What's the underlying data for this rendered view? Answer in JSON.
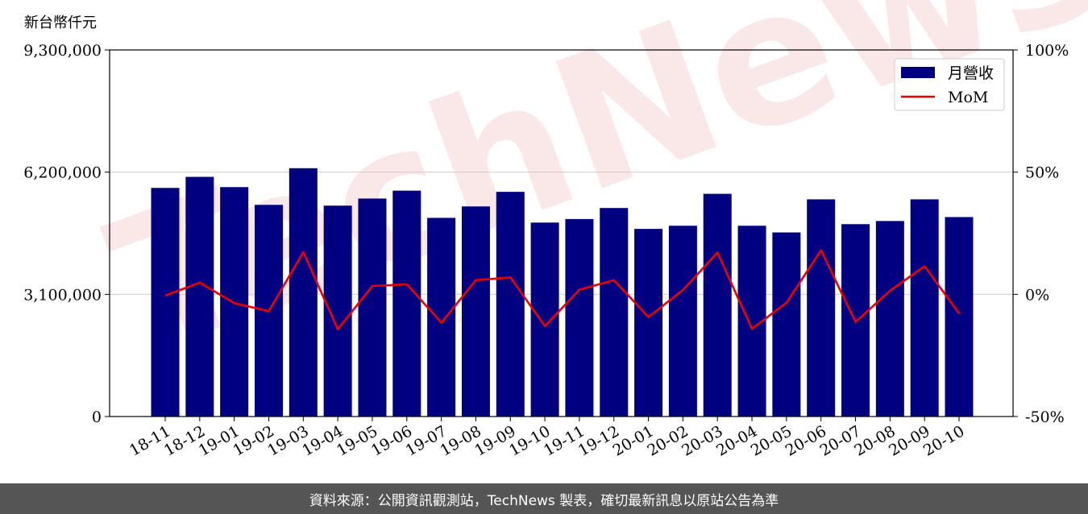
{
  "chart_data": {
    "type": "bar",
    "unit_label": "新台幣仟元",
    "categories": [
      "18-11",
      "18-12",
      "19-01",
      "19-02",
      "19-03",
      "19-04",
      "19-05",
      "19-06",
      "19-07",
      "19-08",
      "19-09",
      "19-10",
      "19-11",
      "19-12",
      "20-01",
      "20-02",
      "20-03",
      "20-04",
      "20-05",
      "20-06",
      "20-07",
      "20-08",
      "20-09",
      "20-10"
    ],
    "series": [
      {
        "name": "月營收",
        "axis": "left",
        "color": "#000080",
        "values": [
          5800000,
          6080000,
          5820000,
          5370000,
          6300000,
          5350000,
          5530000,
          5730000,
          5040000,
          5330000,
          5700000,
          4920000,
          5010000,
          5290000,
          4760000,
          4840000,
          5650000,
          4840000,
          4670000,
          5510000,
          4880000,
          4960000,
          5510000,
          5060000
        ]
      },
      {
        "name": "MoM",
        "axis": "right",
        "color": "#ee0000",
        "values": [
          -0.5,
          4.8,
          -3.6,
          -6.9,
          17.3,
          -14.3,
          3.4,
          4.1,
          -11.6,
          5.8,
          6.9,
          -13.0,
          1.9,
          5.8,
          -9.3,
          1.8,
          17.1,
          -14.1,
          -3.4,
          18.0,
          -11.3,
          1.5,
          11.5,
          -7.8
        ]
      }
    ],
    "y_left": {
      "ylim": [
        0,
        9300000
      ],
      "ticks": [
        "0",
        "3,100,000",
        "6,200,000",
        "9,300,000"
      ],
      "tick_values": [
        0,
        3100000,
        6200000,
        9300000
      ]
    },
    "y_right": {
      "ylim": [
        -50,
        100
      ],
      "ticks": [
        "-50%",
        "0%",
        "50%",
        "100%"
      ],
      "tick_values": [
        -50,
        0,
        50,
        100
      ]
    },
    "grid": "horizontal",
    "legend": {
      "placement": "top-right",
      "entries": [
        "月營收",
        "MoM"
      ]
    },
    "watermark": "TechNews"
  },
  "footer": {
    "text": "資料來源：公開資訊觀測站，TechNews 製表，確切最新訊息以原站公告為準"
  }
}
